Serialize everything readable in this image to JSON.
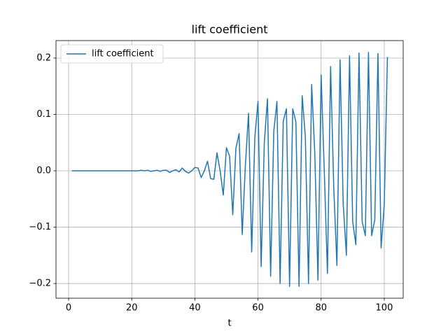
{
  "chart_data": {
    "type": "line",
    "title": "lift coefficient",
    "xlabel": "t",
    "x": [
      1,
      2,
      3,
      4,
      5,
      6,
      7,
      8,
      9,
      10,
      11,
      12,
      13,
      14,
      15,
      16,
      17,
      18,
      19,
      20,
      21,
      22,
      23,
      24,
      25,
      26,
      27,
      28,
      29,
      30,
      31,
      32,
      33,
      34,
      35,
      36,
      37,
      38,
      39,
      40,
      41,
      42,
      43,
      44,
      45,
      46,
      47,
      48,
      49,
      50,
      51,
      52,
      53,
      54,
      55,
      56,
      57,
      58,
      59,
      60,
      61,
      62,
      63,
      64,
      65,
      66,
      67,
      68,
      69,
      70,
      71,
      72,
      73,
      74,
      75,
      76,
      77,
      78,
      79,
      80,
      81,
      82,
      83,
      84,
      85,
      86,
      87,
      88,
      89,
      90,
      91,
      92,
      93,
      94,
      95,
      96,
      97,
      98,
      99,
      100,
      101
    ],
    "series": [
      {
        "name": "lift coefficient",
        "color": "#1f77b4",
        "values": [
          0,
          0,
          0,
          0,
          0,
          0,
          0,
          0,
          0,
          0,
          0,
          0,
          0,
          0,
          0,
          0,
          0,
          0,
          0,
          0,
          0,
          0,
          0.001,
          0,
          0.001,
          -0.001,
          0,
          0.001,
          -0.001,
          0.001,
          0.001,
          -0.003,
          0,
          0.002,
          -0.002,
          0.005,
          -0.001,
          -0.004,
          0,
          0.006,
          0.005,
          -0.012,
          0,
          0.017,
          -0.014,
          -0.015,
          0.032,
          0,
          -0.043,
          0.041,
          0.026,
          -0.078,
          0.04,
          0.066,
          -0.113,
          0.01,
          0.102,
          -0.144,
          0.06,
          0.123,
          -0.17,
          0.05,
          0.128,
          -0.187,
          0.07,
          0.123,
          -0.2,
          0.088,
          0.11,
          -0.205,
          0.11,
          0.087,
          -0.205,
          0.133,
          0.06,
          -0.2,
          0.153,
          0.03,
          -0.194,
          0.17,
          0,
          -0.182,
          0.185,
          -0.03,
          -0.168,
          0.197,
          -0.06,
          -0.15,
          0.204,
          -0.09,
          -0.131,
          0.209,
          -0.09,
          -0.115,
          0.21,
          -0.115,
          -0.087,
          0.208,
          -0.137,
          -0.06,
          0.202
        ]
      }
    ],
    "xlim": [
      -4,
      106
    ],
    "ylim": [
      -0.226,
      0.231
    ],
    "xticks": [
      0,
      20,
      40,
      60,
      80,
      100
    ],
    "yticks": [
      {
        "value": -0.2,
        "label": "−0.2"
      },
      {
        "value": -0.1,
        "label": "−0.1"
      },
      {
        "value": 0,
        "label": "0.0"
      },
      0.1,
      0.2
    ],
    "grid": true,
    "legend": "upper left"
  }
}
